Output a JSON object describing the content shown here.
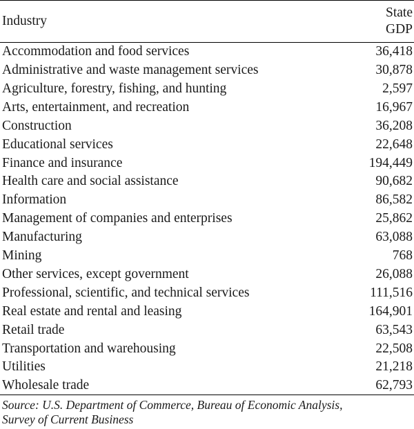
{
  "table": {
    "headers": {
      "industry": "Industry",
      "gdp_line1": "State",
      "gdp_line2": "GDP"
    },
    "rows": [
      {
        "industry": "Accommodation and food services",
        "gdp": "36,418"
      },
      {
        "industry": "Administrative and waste management services",
        "gdp": "30,878"
      },
      {
        "industry": "Agriculture, forestry, fishing, and hunting",
        "gdp": "2,597"
      },
      {
        "industry": "Arts, entertainment, and recreation",
        "gdp": "16,967"
      },
      {
        "industry": "Construction",
        "gdp": "36,208"
      },
      {
        "industry": "Educational services",
        "gdp": "22,648"
      },
      {
        "industry": "Finance and insurance",
        "gdp": "194,449"
      },
      {
        "industry": "Health care and social assistance",
        "gdp": "90,682"
      },
      {
        "industry": "Information",
        "gdp": "86,582"
      },
      {
        "industry": "Management of companies and enterprises",
        "gdp": "25,862"
      },
      {
        "industry": "Manufacturing",
        "gdp": "63,088"
      },
      {
        "industry": "Mining",
        "gdp": "768"
      },
      {
        "industry": "Other services, except government",
        "gdp": "26,088"
      },
      {
        "industry": "Professional, scientific, and technical services",
        "gdp": "111,516"
      },
      {
        "industry": "Real estate and rental and leasing",
        "gdp": "164,901"
      },
      {
        "industry": "Retail trade",
        "gdp": "63,543"
      },
      {
        "industry": "Transportation and warehousing",
        "gdp": "22,508"
      },
      {
        "industry": "Utilities",
        "gdp": "21,218"
      },
      {
        "industry": "Wholesale trade",
        "gdp": "62,793"
      }
    ]
  },
  "source": {
    "line1": "Source: U.S. Department of Commerce, Bureau of Economic Analysis,",
    "line2": "Survey of Current Business"
  }
}
